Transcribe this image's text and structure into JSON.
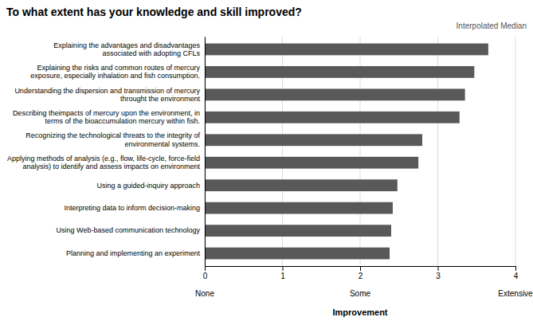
{
  "chart_data": {
    "type": "bar",
    "orientation": "horizontal",
    "title": "To  what extent has your knowledge and skill improved?",
    "x_label": "Improvement",
    "annotations": [
      {
        "text": "Interpolated Median"
      },
      {
        "text": "None",
        "x": 0
      },
      {
        "text": "Some",
        "x": 2
      },
      {
        "text": "Extensive",
        "x": 4
      }
    ],
    "categories": [
      "Planning and implementing an experiment",
      "Using Web-based communication technology",
      "Interpreting data to inform decision-making",
      "Using a guided-inquiry approach",
      "Applying methods of analysis (e.g., flow, life-cycle, force-field\nanalysis) to identify and assess impacts on environment",
      "Recognizing the technological threats to the integrity of\nenvironmental systems.",
      "Describing theimpacts of mercury upon the environment, in\nterms of the bioaccumulation mercury within fish.",
      "Understanding the dispersion and transmission of mercury\nthrought the environment",
      "Explaining the risks and common routes of mercury\nexposure, especially inhalation and fish consumption.",
      "Explaining the advantages and disadvantages\nassociated with adopting CFLs"
    ],
    "values": [
      2.38,
      2.4,
      2.42,
      2.48,
      2.75,
      2.8,
      3.28,
      3.35,
      3.47,
      3.65
    ],
    "color": "#595959",
    "xlim": [
      0,
      4
    ],
    "xticks": [
      0,
      1,
      2,
      3,
      4
    ],
    "grid": true
  }
}
